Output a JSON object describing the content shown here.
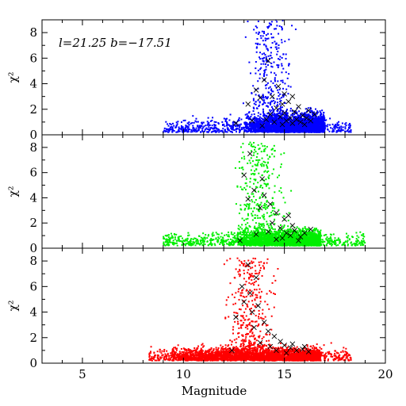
{
  "chart_data": {
    "type": "scatter",
    "xlabel": "Magnitude",
    "xlim": [
      3,
      20
    ],
    "x_ticks": [
      5,
      10,
      15,
      20
    ],
    "annotation": "l=21.25 b=−17.51",
    "panels": [
      {
        "ylabel": "χ²",
        "ylim": [
          0,
          9
        ],
        "y_ticks": [
          0,
          2,
          4,
          6,
          8
        ],
        "point_color": "#0000ff",
        "cross_color": "#000000",
        "point_cloud": {
          "x_range": [
            9.0,
            18.3
          ],
          "dense_core": {
            "x_range": [
              13.0,
              17.0
            ],
            "y_range": [
              0.2,
              3.5
            ]
          },
          "plume": {
            "x_center": 14.3,
            "x_spread": 1.0,
            "y_max": 9.0
          }
        },
        "crosses": [
          [
            12.6,
            0.9
          ],
          [
            13.4,
            1.1
          ],
          [
            13.9,
            0.7
          ],
          [
            14.1,
            1.2
          ],
          [
            14.3,
            1.6
          ],
          [
            14.5,
            1.0
          ],
          [
            14.6,
            2.1
          ],
          [
            14.8,
            1.4
          ],
          [
            14.9,
            0.8
          ],
          [
            15.0,
            1.7
          ],
          [
            15.1,
            1.1
          ],
          [
            15.2,
            2.6
          ],
          [
            15.3,
            1.3
          ],
          [
            15.4,
            0.9
          ],
          [
            15.5,
            1.8
          ],
          [
            15.6,
            1.2
          ],
          [
            15.7,
            2.2
          ],
          [
            15.8,
            1.0
          ],
          [
            15.9,
            1.5
          ],
          [
            16.0,
            0.8
          ],
          [
            16.1,
            1.3
          ],
          [
            16.2,
            1.9
          ],
          [
            16.3,
            1.1
          ],
          [
            13.6,
            3.5
          ],
          [
            14.0,
            4.3
          ],
          [
            14.4,
            3.0
          ],
          [
            14.7,
            3.8
          ],
          [
            15.0,
            3.2
          ],
          [
            13.2,
            2.4
          ],
          [
            14.2,
            5.8
          ],
          [
            13.8,
            2.9
          ],
          [
            15.4,
            3.0
          ],
          [
            14.9,
            2.4
          ],
          [
            16.5,
            1.6
          ]
        ]
      },
      {
        "ylabel": "χ²",
        "ylim": [
          0,
          9
        ],
        "y_ticks": [
          0,
          2,
          4,
          6,
          8
        ],
        "point_color": "#00ee00",
        "cross_color": "#000000",
        "point_cloud": {
          "x_range": [
            9.0,
            19.0
          ],
          "dense_core": {
            "x_range": [
              12.5,
              16.8
            ],
            "y_range": [
              0.2,
              3.0
            ]
          },
          "plume": {
            "x_center": 13.8,
            "x_spread": 1.2,
            "y_max": 8.5
          }
        },
        "crosses": [
          [
            13.3,
            7.5
          ],
          [
            13.0,
            5.8
          ],
          [
            13.9,
            5.5
          ],
          [
            13.5,
            4.6
          ],
          [
            14.0,
            4.2
          ],
          [
            13.2,
            3.9
          ],
          [
            14.3,
            3.5
          ],
          [
            13.8,
            3.2
          ],
          [
            14.6,
            2.8
          ],
          [
            15.0,
            2.3
          ],
          [
            14.4,
            2.0
          ],
          [
            14.8,
            1.6
          ],
          [
            15.1,
            1.2
          ],
          [
            15.3,
            1.0
          ],
          [
            15.5,
            1.4
          ],
          [
            15.8,
            0.9
          ],
          [
            16.0,
            1.2
          ],
          [
            14.2,
            1.3
          ],
          [
            14.9,
            0.8
          ],
          [
            15.4,
            1.8
          ],
          [
            15.7,
            0.6
          ],
          [
            13.6,
            1.1
          ],
          [
            14.6,
            0.7
          ],
          [
            16.3,
            1.5
          ],
          [
            12.8,
            0.6
          ],
          [
            15.2,
            2.6
          ]
        ]
      },
      {
        "ylabel": "χ²",
        "ylim": [
          0,
          9
        ],
        "y_ticks": [
          0,
          2,
          4,
          6,
          8
        ],
        "point_color": "#ff0000",
        "cross_color": "#000000",
        "point_cloud": {
          "x_range": [
            8.3,
            18.3
          ],
          "dense_core": {
            "x_range": [
              9.0,
              16.8
            ],
            "y_range": [
              0.2,
              2.4
            ]
          },
          "plume": {
            "x_center": 13.3,
            "x_spread": 1.2,
            "y_max": 8.3
          }
        },
        "crosses": [
          [
            13.2,
            7.7
          ],
          [
            13.6,
            6.7
          ],
          [
            12.9,
            6.0
          ],
          [
            13.3,
            5.5
          ],
          [
            13.0,
            4.8
          ],
          [
            13.7,
            4.5
          ],
          [
            13.4,
            4.0
          ],
          [
            12.6,
            3.6
          ],
          [
            14.0,
            3.2
          ],
          [
            13.5,
            2.8
          ],
          [
            14.2,
            2.5
          ],
          [
            14.5,
            2.1
          ],
          [
            14.8,
            1.7
          ],
          [
            15.0,
            1.4
          ],
          [
            15.3,
            1.2
          ],
          [
            15.6,
            1.0
          ],
          [
            15.9,
            1.1
          ],
          [
            16.2,
            0.9
          ],
          [
            14.6,
            1.0
          ],
          [
            15.1,
            0.8
          ],
          [
            14.3,
            1.3
          ],
          [
            15.4,
            1.5
          ],
          [
            16.0,
            1.3
          ],
          [
            13.8,
            1.6
          ],
          [
            12.4,
            1.0
          ]
        ]
      }
    ]
  }
}
